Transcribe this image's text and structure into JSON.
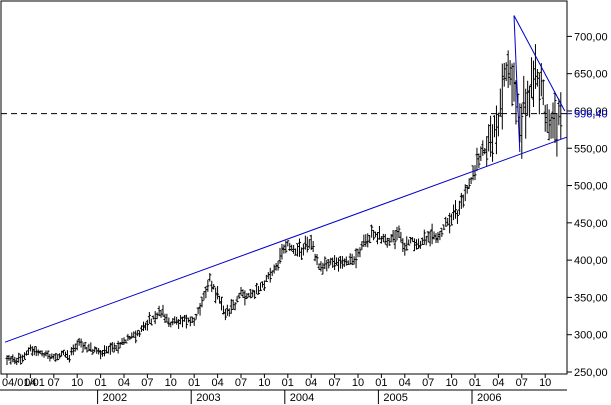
{
  "chart_data": {
    "type": "ohlc",
    "title": "",
    "xlabel": "",
    "ylabel": "",
    "ylim": [
      250,
      730
    ],
    "grid": false,
    "legend": "none",
    "x_tick_labels": [
      "04/01/01",
      "04",
      "07",
      "10",
      "01",
      "04",
      "07",
      "10",
      "01",
      "04",
      "07",
      "10",
      "01",
      "04",
      "07",
      "10",
      "01",
      "04",
      "07",
      "10",
      "01",
      "04",
      "07",
      "10"
    ],
    "x_year_labels": [
      "2002",
      "2003",
      "2004",
      "2005",
      "2006"
    ],
    "y_tick_labels": [
      "250,00",
      "300,00",
      "350,00",
      "400,00",
      "450,00",
      "500,00",
      "550,00",
      "600,00",
      "650,00",
      "700,00"
    ],
    "y_ticks": [
      250,
      300,
      350,
      400,
      450,
      500,
      550,
      600,
      650,
      700
    ],
    "current_value_label": "596,40",
    "current_value": 596.4,
    "series": [
      {
        "values": [
          [
            "2001-01",
            268
          ],
          [
            "2001-02",
            266
          ],
          [
            "2001-03",
            270
          ],
          [
            "2001-04",
            282
          ],
          [
            "2001-05",
            276
          ],
          [
            "2001-06",
            272
          ],
          [
            "2001-07",
            270
          ],
          [
            "2001-08",
            274
          ],
          [
            "2001-09",
            272
          ],
          [
            "2001-10",
            290
          ],
          [
            "2001-11",
            284
          ],
          [
            "2001-12",
            278
          ],
          [
            "2002-01",
            276
          ],
          [
            "2002-02",
            279
          ],
          [
            "2002-03",
            283
          ],
          [
            "2002-04",
            290
          ],
          [
            "2002-05",
            300
          ],
          [
            "2002-06",
            304
          ],
          [
            "2002-07",
            313
          ],
          [
            "2002-08",
            324
          ],
          [
            "2002-09",
            330
          ],
          [
            "2002-10",
            316
          ],
          [
            "2002-11",
            318
          ],
          [
            "2002-12",
            322
          ],
          [
            "2003-01",
            320
          ],
          [
            "2003-02",
            342
          ],
          [
            "2003-03",
            376
          ],
          [
            "2003-04",
            352
          ],
          [
            "2003-05",
            328
          ],
          [
            "2003-06",
            336
          ],
          [
            "2003-07",
            356
          ],
          [
            "2003-08",
            352
          ],
          [
            "2003-09",
            360
          ],
          [
            "2003-10",
            370
          ],
          [
            "2003-11",
            382
          ],
          [
            "2003-12",
            400
          ],
          [
            "2004-01",
            422
          ],
          [
            "2004-02",
            410
          ],
          [
            "2004-03",
            414
          ],
          [
            "2004-04",
            425
          ],
          [
            "2004-05",
            390
          ],
          [
            "2004-06",
            392
          ],
          [
            "2004-07",
            398
          ],
          [
            "2004-08",
            400
          ],
          [
            "2004-09",
            396
          ],
          [
            "2004-10",
            408
          ],
          [
            "2004-11",
            424
          ],
          [
            "2004-12",
            436
          ],
          [
            "2005-01",
            430
          ],
          [
            "2005-02",
            426
          ],
          [
            "2005-03",
            438
          ],
          [
            "2005-04",
            420
          ],
          [
            "2005-05",
            426
          ],
          [
            "2005-06",
            422
          ],
          [
            "2005-07",
            432
          ],
          [
            "2005-08",
            430
          ],
          [
            "2005-09",
            442
          ],
          [
            "2005-10",
            458
          ],
          [
            "2005-11",
            468
          ],
          [
            "2005-12",
            492
          ],
          [
            "2006-01",
            522
          ],
          [
            "2006-02",
            546
          ],
          [
            "2006-03",
            560
          ],
          [
            "2006-04",
            592
          ],
          [
            "2006-05",
            660
          ],
          [
            "2006-06",
            645
          ],
          [
            "2006-07",
            592
          ],
          [
            "2006-08",
            625
          ],
          [
            "2006-09",
            640
          ],
          [
            "2006-10",
            606
          ],
          [
            "2006-11",
            578
          ],
          [
            "2006-12",
            596
          ]
        ]
      }
    ],
    "trendlines": [
      {
        "from": [
          "2001-01",
          290
        ],
        "to": [
          "2006-12",
          565
        ]
      },
      {
        "from": [
          "2006-06",
          728
        ],
        "to": [
          "2006-12",
          600
        ]
      }
    ]
  }
}
